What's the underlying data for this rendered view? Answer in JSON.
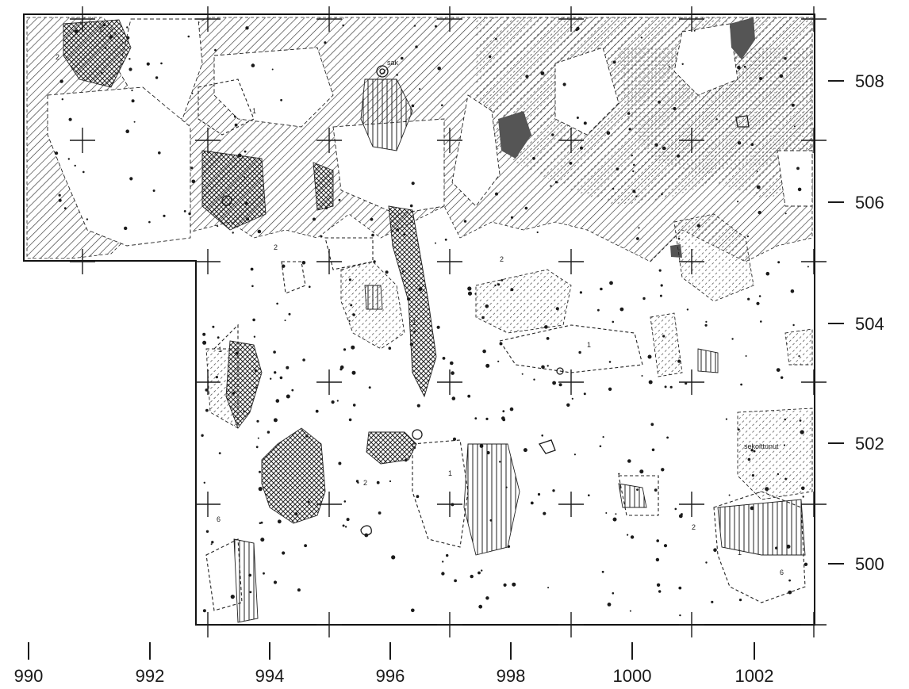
{
  "map": {
    "x_tick_labels": [
      "990",
      "992",
      "994",
      "996",
      "998",
      "1000",
      "1002"
    ],
    "y_tick_labels": [
      "508",
      "506",
      "504",
      "502",
      "500"
    ],
    "annotations": {
      "sak": "sak",
      "sekoittunut": "sekoittunut",
      "zone_1": "1",
      "zone_2": "2",
      "zone_6": "6"
    },
    "colors": {
      "ink": "#1a1a1a",
      "paper": "#ffffff",
      "solid_fill": "#555555"
    }
  }
}
